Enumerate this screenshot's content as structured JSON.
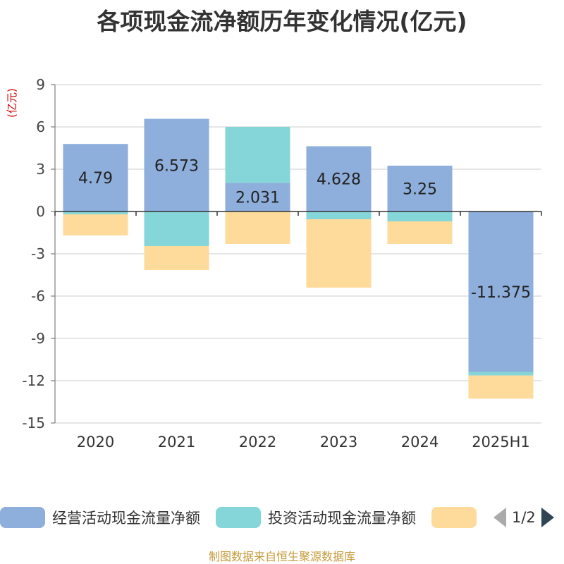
{
  "chart_data": {
    "type": "bar",
    "stacked": true,
    "title": "各项现金流净额历年变化情况(亿元)",
    "ylabel": "(亿元)",
    "categories": [
      "2020",
      "2021",
      "2022",
      "2023",
      "2024",
      "2025H1"
    ],
    "ylim": [
      -15,
      9
    ],
    "yticks": [
      9,
      6,
      3,
      0,
      -3,
      -6,
      -9,
      -12,
      -15
    ],
    "grid": true,
    "legend_position": "bottom",
    "series": [
      {
        "name": "经营活动现金流量净额",
        "color": "#8eaedb",
        "values": [
          4.79,
          6.573,
          2.031,
          4.628,
          3.25,
          -11.375
        ],
        "show_labels": true
      },
      {
        "name": "投资活动现金流量净额",
        "color": "#85d6d8",
        "values": [
          -0.2,
          -2.45,
          3.97,
          -0.55,
          -0.7,
          -0.25
        ],
        "show_labels": false
      },
      {
        "name": "",
        "color": "#fedb9b",
        "values": [
          -1.5,
          -1.7,
          -2.3,
          -4.85,
          -1.6,
          -1.65
        ],
        "show_labels": false
      }
    ]
  },
  "legend": {
    "items": [
      {
        "label": "经营活动现金流量净额",
        "color": "#8eaedb"
      },
      {
        "label": "投资活动现金流量净额",
        "color": "#85d6d8"
      },
      {
        "label": "",
        "color": "#fedb9b"
      }
    ],
    "page_indicator": "1/2"
  },
  "source_text": "制图数据来自恒生聚源数据库"
}
